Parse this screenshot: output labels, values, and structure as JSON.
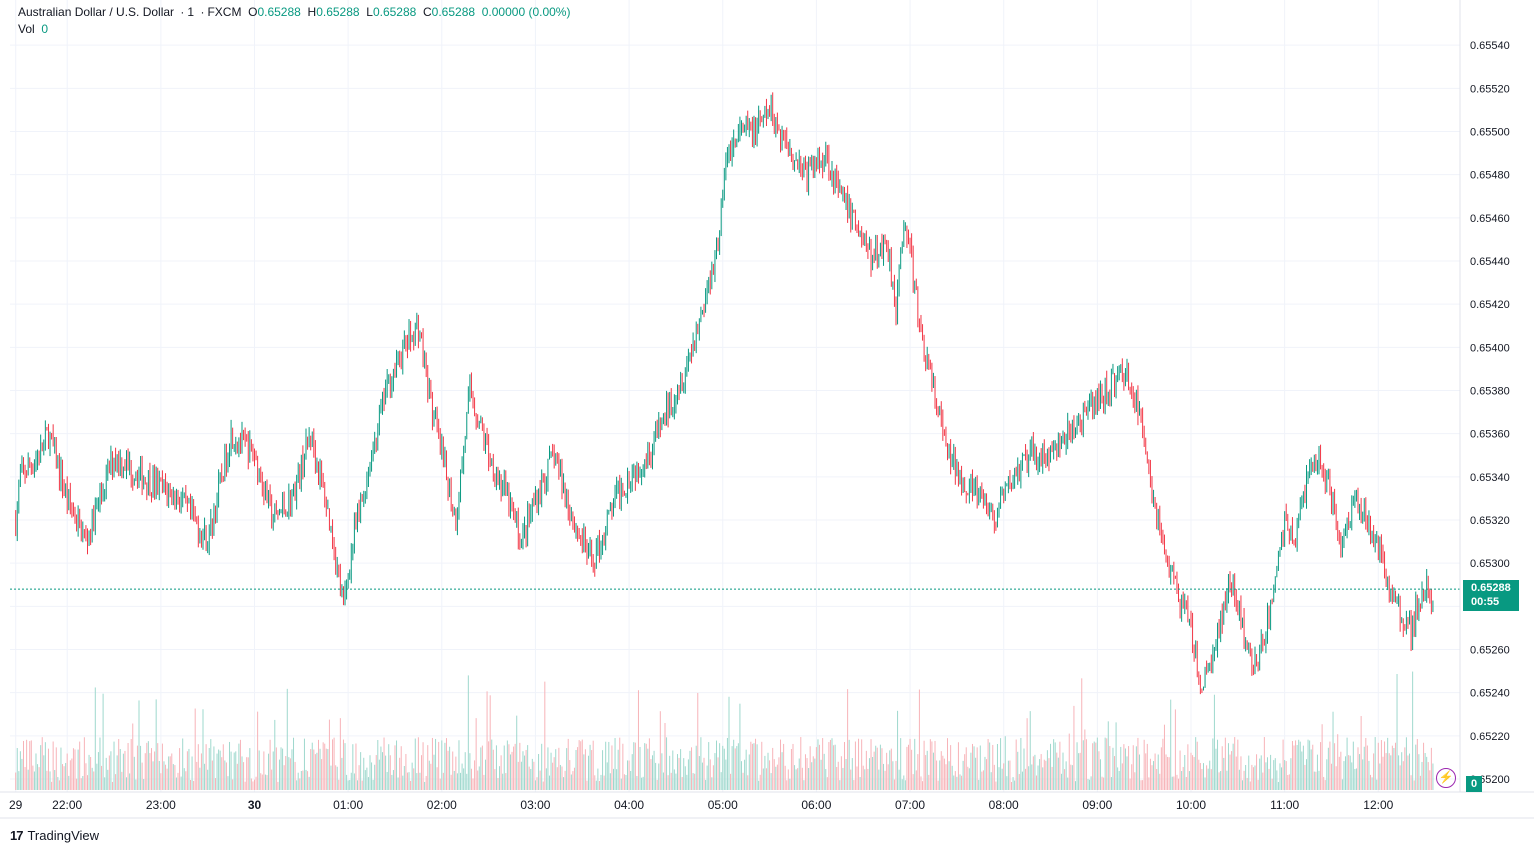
{
  "legend": {
    "symbol": "Australian Dollar / U.S. Dollar",
    "interval": "1",
    "exchange": "FXCM",
    "open_label": "O",
    "open": "0.65288",
    "high_label": "H",
    "high": "0.65288",
    "low_label": "L",
    "low": "0.65288",
    "close_label": "C",
    "close": "0.65288",
    "change": "0.00000 (0.00%)",
    "vol_label": "Vol",
    "vol_value": "0"
  },
  "price_tag": {
    "price": "0.65288",
    "countdown": "00:55"
  },
  "vol_tag": "0",
  "brand": {
    "logo_text": "17",
    "name": "TradingView"
  },
  "colors": {
    "up": "#089981",
    "down": "#f23645",
    "up_vol": "#9ed8cd",
    "down_vol": "#f7b3b8",
    "grid": "#f0f3fa"
  },
  "icons": {
    "lightning": "lightning-icon"
  },
  "chart_data": {
    "type": "candlestick",
    "ylim": [
      0.652,
      0.6556
    ],
    "y_ticks": [
      "0.65200",
      "0.65220",
      "0.65240",
      "0.65260",
      "0.65280",
      "0.65300",
      "0.65320",
      "0.65340",
      "0.65360",
      "0.65380",
      "0.65400",
      "0.65420",
      "0.65440",
      "0.65460",
      "0.65480",
      "0.65500",
      "0.65520",
      "0.65540"
    ],
    "x_tick_labels": [
      "29",
      "22:00",
      "23:00",
      "30",
      "01:00",
      "02:00",
      "03:00",
      "04:00",
      "05:00",
      "06:00",
      "07:00",
      "08:00",
      "09:00",
      "10:00",
      "11:00",
      "12:00"
    ],
    "x_tick_hours": [
      -2.55,
      -2,
      -1,
      0,
      1,
      2,
      3,
      4,
      5,
      6,
      7,
      8,
      9,
      10,
      11,
      12
    ],
    "current_price": 0.65288,
    "anchors_hours": [
      -2.55,
      -2.5,
      -2.3,
      -2.2,
      -2.0,
      -1.8,
      -1.5,
      -1.2,
      -0.8,
      -0.5,
      -0.25,
      0,
      0.2,
      0.4,
      0.6,
      0.8,
      0.95,
      1.05,
      1.2,
      1.4,
      1.6,
      1.75,
      1.9,
      2.0,
      2.15,
      2.3,
      2.5,
      2.7,
      2.85,
      3.0,
      3.2,
      3.4,
      3.6,
      3.7,
      3.85,
      4.0,
      4.2,
      4.4,
      4.6,
      4.8,
      4.95,
      5.05,
      5.2,
      5.35,
      5.5,
      5.6,
      5.75,
      5.9,
      6.1,
      6.25,
      6.4,
      6.6,
      6.75,
      6.85,
      6.95,
      7.1,
      7.25,
      7.4,
      7.55,
      7.75,
      7.9,
      8.1,
      8.3,
      8.5,
      8.7,
      8.9,
      9.1,
      9.3,
      9.5,
      9.6,
      9.75,
      9.9,
      10.0,
      10.1,
      10.25,
      10.4,
      10.5,
      10.6,
      10.7,
      10.85,
      11.0,
      11.1,
      11.3,
      11.45,
      11.6,
      11.75,
      11.9,
      12.05,
      12.2,
      12.35,
      12.5,
      12.6
    ],
    "anchors_price": [
      0.6532,
      0.6534,
      0.6535,
      0.6536,
      0.6533,
      0.6531,
      0.6535,
      0.6534,
      0.6533,
      0.6531,
      0.6536,
      0.6535,
      0.6532,
      0.6533,
      0.6536,
      0.6532,
      0.6528,
      0.6531,
      0.6534,
      0.6538,
      0.654,
      0.6541,
      0.6537,
      0.6535,
      0.6532,
      0.6538,
      0.6535,
      0.6533,
      0.6531,
      0.6533,
      0.6535,
      0.6532,
      0.653,
      0.6531,
      0.6533,
      0.6534,
      0.6535,
      0.6537,
      0.6539,
      0.6542,
      0.6545,
      0.6549,
      0.655,
      0.655,
      0.6551,
      0.655,
      0.6549,
      0.6548,
      0.6549,
      0.6547,
      0.6546,
      0.6544,
      0.6545,
      0.6542,
      0.6546,
      0.6541,
      0.6538,
      0.6535,
      0.6534,
      0.6533,
      0.6532,
      0.6534,
      0.6535,
      0.6535,
      0.6536,
      0.6537,
      0.6538,
      0.6539,
      0.6536,
      0.6533,
      0.653,
      0.6528,
      0.6527,
      0.6524,
      0.6526,
      0.6529,
      0.6528,
      0.6526,
      0.6525,
      0.6528,
      0.6532,
      0.6531,
      0.6535,
      0.6534,
      0.6531,
      0.6533,
      0.6532,
      0.653,
      0.6528,
      0.6527,
      0.6529,
      0.6528
    ]
  }
}
